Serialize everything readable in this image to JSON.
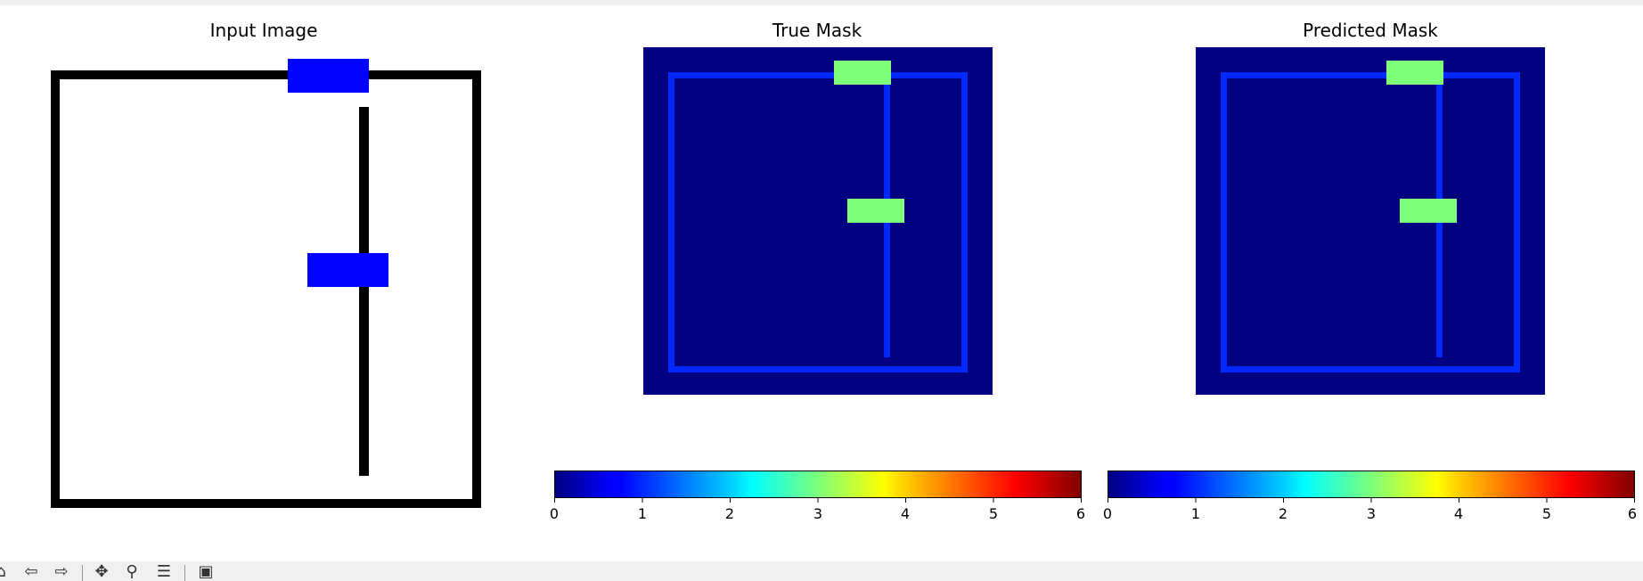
{
  "panels": [
    {
      "title": "Input Image"
    },
    {
      "title": "True Mask"
    },
    {
      "title": "Predicted Mask"
    }
  ],
  "colorbars": [
    {
      "ticks": [
        "0",
        "1",
        "2",
        "3",
        "4",
        "5",
        "6"
      ]
    },
    {
      "ticks": [
        "0",
        "1",
        "2",
        "3",
        "4",
        "5",
        "6"
      ]
    }
  ],
  "colors": {
    "mask_background": "#000080",
    "mask_wall": "#0028ff",
    "mask_door": "#7dff7a",
    "input_wall": "#000000",
    "input_door": "#0000ff"
  },
  "toolbar": {
    "buttons": [
      {
        "icon": "home-icon",
        "glyph": "⌂"
      },
      {
        "icon": "back-arrow-icon",
        "glyph": "⇦"
      },
      {
        "icon": "forward-arrow-icon",
        "glyph": "⇨"
      },
      {
        "icon": "pan-icon",
        "glyph": "✥"
      },
      {
        "icon": "zoom-icon",
        "glyph": "⚲"
      },
      {
        "icon": "configure-subplots-icon",
        "glyph": "☰"
      },
      {
        "icon": "save-icon",
        "glyph": "▣"
      }
    ]
  }
}
